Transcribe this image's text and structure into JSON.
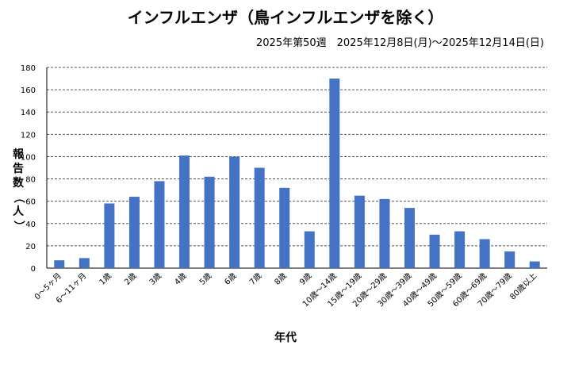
{
  "chart_data": {
    "type": "bar",
    "title": "インフルエンザ（鳥インフルエンザを除く）",
    "subtitle": "2025年第50週　2025年12月8日(月)～2025年12月14日(日)",
    "xlabel": "年代",
    "ylabel": "報告数（人）",
    "ylim": [
      0,
      180
    ],
    "yticks": [
      0,
      20,
      40,
      60,
      80,
      100,
      120,
      140,
      160,
      180
    ],
    "grid": true,
    "bar_color": "#4472C4",
    "categories": [
      "0～5ヶ月",
      "6～11ヶ月",
      "1歳",
      "2歳",
      "3歳",
      "4歳",
      "5歳",
      "6歳",
      "7歳",
      "8歳",
      "9歳",
      "10歳～14歳",
      "15歳～19歳",
      "20歳～29歳",
      "30歳～39歳",
      "40歳～49歳",
      "50歳～59歳",
      "60歳～69歳",
      "70歳～79歳",
      "80歳以上"
    ],
    "values": [
      7,
      9,
      58,
      64,
      78,
      101,
      82,
      100,
      90,
      72,
      33,
      170,
      65,
      62,
      54,
      30,
      33,
      26,
      15,
      6
    ]
  }
}
